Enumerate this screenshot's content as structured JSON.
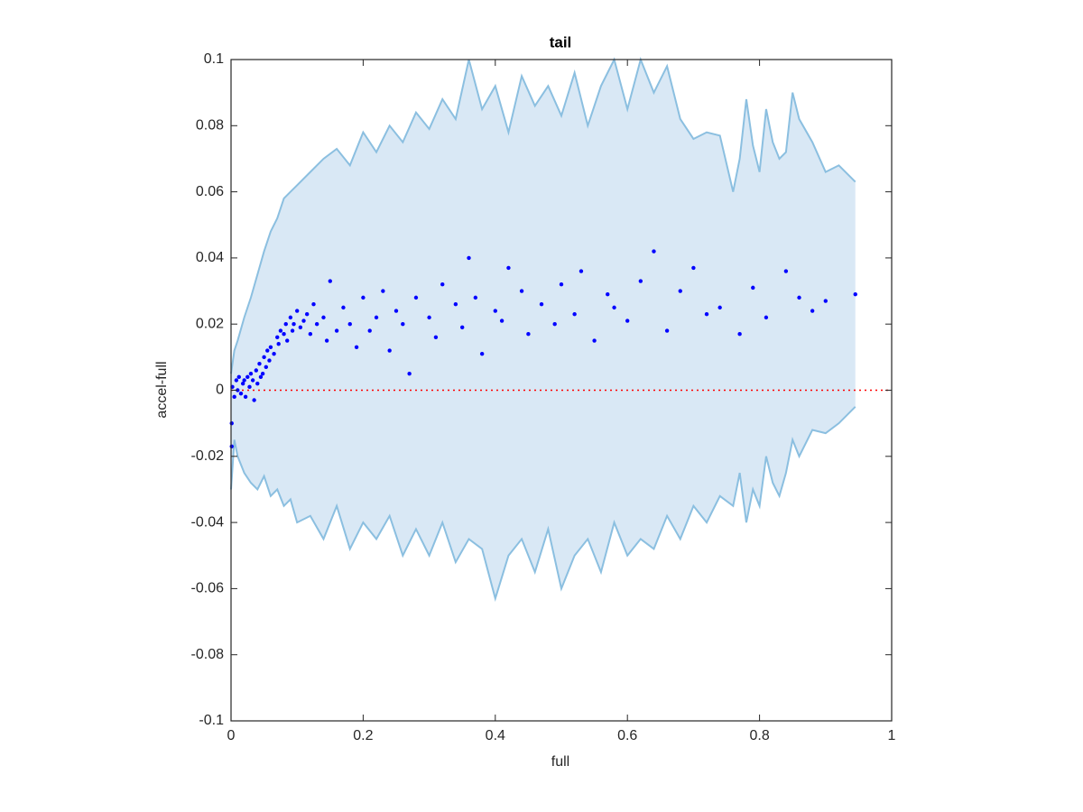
{
  "chart_data": {
    "type": "scatter",
    "title": "tail",
    "x_label": "full",
    "y_label": "accel-full",
    "xlim": [
      0,
      1
    ],
    "ylim": [
      -0.1,
      0.1
    ],
    "xticks": [
      0,
      0.2,
      0.4,
      0.6,
      0.8,
      1
    ],
    "yticks": [
      -0.1,
      -0.08,
      -0.06,
      -0.04,
      -0.02,
      0,
      0.02,
      0.04,
      0.06,
      0.08,
      0.1
    ],
    "grid": false,
    "band": {
      "color": "#8bbfe0",
      "fill": "#d9e8f5",
      "x": [
        0,
        0.005,
        0.01,
        0.02,
        0.03,
        0.04,
        0.05,
        0.06,
        0.07,
        0.08,
        0.09,
        0.1,
        0.12,
        0.14,
        0.16,
        0.18,
        0.2,
        0.22,
        0.24,
        0.26,
        0.28,
        0.3,
        0.32,
        0.34,
        0.36,
        0.38,
        0.4,
        0.42,
        0.44,
        0.46,
        0.48,
        0.5,
        0.52,
        0.54,
        0.56,
        0.58,
        0.6,
        0.62,
        0.64,
        0.66,
        0.68,
        0.7,
        0.72,
        0.74,
        0.76,
        0.77,
        0.78,
        0.79,
        0.8,
        0.81,
        0.82,
        0.83,
        0.84,
        0.85,
        0.86,
        0.88,
        0.9,
        0.92,
        0.945
      ],
      "upper": [
        0.005,
        0.012,
        0.015,
        0.022,
        0.028,
        0.035,
        0.042,
        0.048,
        0.052,
        0.058,
        0.06,
        0.062,
        0.066,
        0.07,
        0.073,
        0.068,
        0.078,
        0.072,
        0.08,
        0.075,
        0.084,
        0.079,
        0.088,
        0.082,
        0.1,
        0.085,
        0.092,
        0.078,
        0.095,
        0.086,
        0.092,
        0.083,
        0.096,
        0.08,
        0.092,
        0.1,
        0.085,
        0.1,
        0.09,
        0.098,
        0.082,
        0.076,
        0.078,
        0.077,
        0.06,
        0.07,
        0.088,
        0.074,
        0.066,
        0.085,
        0.075,
        0.07,
        0.072,
        0.09,
        0.082,
        0.075,
        0.066,
        0.068,
        0.063
      ],
      "lower": [
        -0.03,
        -0.015,
        -0.02,
        -0.025,
        -0.028,
        -0.03,
        -0.026,
        -0.032,
        -0.03,
        -0.035,
        -0.033,
        -0.04,
        -0.038,
        -0.045,
        -0.035,
        -0.048,
        -0.04,
        -0.045,
        -0.038,
        -0.05,
        -0.042,
        -0.05,
        -0.04,
        -0.052,
        -0.045,
        -0.048,
        -0.063,
        -0.05,
        -0.045,
        -0.055,
        -0.042,
        -0.06,
        -0.05,
        -0.045,
        -0.055,
        -0.04,
        -0.05,
        -0.045,
        -0.048,
        -0.038,
        -0.045,
        -0.035,
        -0.04,
        -0.032,
        -0.035,
        -0.025,
        -0.04,
        -0.03,
        -0.035,
        -0.02,
        -0.028,
        -0.032,
        -0.025,
        -0.015,
        -0.02,
        -0.012,
        -0.013,
        -0.01,
        -0.005
      ]
    },
    "points": {
      "color": "#0000ff",
      "x": [
        0.002,
        0.005,
        0.008,
        0.01,
        0.012,
        0.015,
        0.018,
        0.02,
        0.022,
        0.025,
        0.028,
        0.03,
        0.033,
        0.035,
        0.038,
        0.04,
        0.043,
        0.045,
        0.048,
        0.05,
        0.053,
        0.055,
        0.058,
        0.06,
        0.065,
        0.07,
        0.072,
        0.075,
        0.08,
        0.083,
        0.085,
        0.09,
        0.093,
        0.095,
        0.1,
        0.105,
        0.11,
        0.115,
        0.12,
        0.125,
        0.13,
        0.14,
        0.145,
        0.15,
        0.16,
        0.17,
        0.18,
        0.19,
        0.2,
        0.21,
        0.22,
        0.23,
        0.24,
        0.25,
        0.26,
        0.27,
        0.28,
        0.3,
        0.31,
        0.32,
        0.34,
        0.35,
        0.36,
        0.37,
        0.38,
        0.4,
        0.41,
        0.42,
        0.44,
        0.45,
        0.47,
        0.49,
        0.5,
        0.52,
        0.53,
        0.55,
        0.57,
        0.58,
        0.6,
        0.62,
        0.64,
        0.66,
        0.68,
        0.7,
        0.72,
        0.74,
        0.77,
        0.79,
        0.81,
        0.84,
        0.86,
        0.88,
        0.9,
        0.945,
        0.001,
        0.001
      ],
      "y": [
        0.001,
        -0.002,
        0.003,
        0,
        0.004,
        -0.001,
        0.002,
        0.003,
        -0.002,
        0.004,
        0.001,
        0.005,
        0.003,
        -0.003,
        0.006,
        0.002,
        0.008,
        0.004,
        0.005,
        0.01,
        0.007,
        0.012,
        0.009,
        0.013,
        0.011,
        0.016,
        0.014,
        0.018,
        0.017,
        0.02,
        0.015,
        0.022,
        0.018,
        0.02,
        0.024,
        0.019,
        0.021,
        0.023,
        0.017,
        0.026,
        0.02,
        0.022,
        0.015,
        0.033,
        0.018,
        0.025,
        0.02,
        0.013,
        0.028,
        0.018,
        0.022,
        0.03,
        0.012,
        0.024,
        0.02,
        0.005,
        0.028,
        0.022,
        0.016,
        0.032,
        0.026,
        0.019,
        0.04,
        0.028,
        0.011,
        0.024,
        0.021,
        0.037,
        0.03,
        0.017,
        0.026,
        0.02,
        0.032,
        0.023,
        0.036,
        0.015,
        0.029,
        0.025,
        0.021,
        0.033,
        0.042,
        0.018,
        0.03,
        0.037,
        0.023,
        0.025,
        0.017,
        0.031,
        0.022,
        0.036,
        0.028,
        0.024,
        0.027,
        0.029,
        -0.01,
        -0.017
      ]
    },
    "reference_line": {
      "y": 0,
      "color": "#ff0000",
      "style": "dotted"
    }
  }
}
